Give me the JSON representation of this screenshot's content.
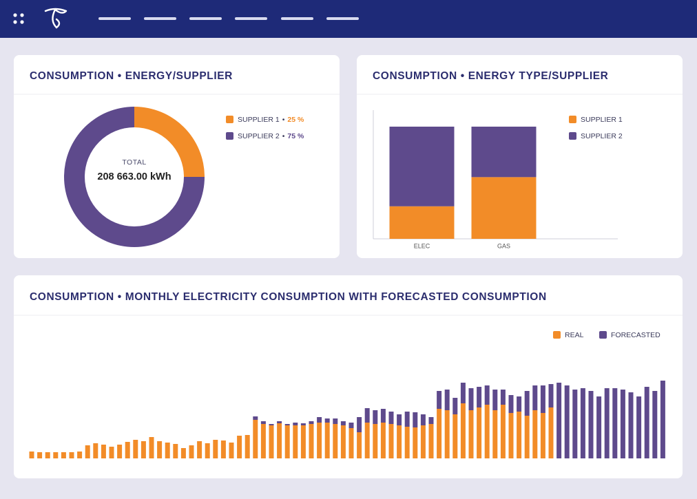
{
  "chart_data": [
    {
      "type": "donut",
      "title": "CONSUMPTION • ENERGY/SUPPLIER",
      "center_label": "TOTAL",
      "center_value": "208 663.00 kWh",
      "legend_separator": "•",
      "categories": [
        "SUPPLIER 1",
        "SUPPLIER 2"
      ],
      "values": [
        25,
        75
      ],
      "value_labels": [
        "25 %",
        "75 %"
      ],
      "colors": [
        "#f28c28",
        "#5e4a8c"
      ]
    },
    {
      "type": "bar",
      "stacked": true,
      "title": "CONSUMPTION • ENERGY TYPE/SUPPLIER",
      "categories": [
        "ELEC",
        "GAS"
      ],
      "ylim": [
        0,
        100
      ],
      "series": [
        {
          "name": "SUPPLIER 1",
          "color": "#f28c28",
          "values": [
            29,
            55
          ]
        },
        {
          "name": "SUPPLIER 2",
          "color": "#5e4a8c",
          "values": [
            71,
            45
          ]
        }
      ]
    },
    {
      "type": "bar",
      "stacked": true,
      "title": "CONSUMPTION • MONTHLY ELECTRICITY CONSUMPTION WITH FORECASTED CONSUMPTION",
      "ylim": [
        0,
        120
      ],
      "series": [
        {
          "name": "REAL",
          "color": "#f28c28",
          "values": [
            10,
            9,
            9,
            9,
            9,
            9,
            10,
            19,
            22,
            20,
            17,
            20,
            24,
            27,
            25,
            31,
            25,
            23,
            21,
            15,
            19,
            25,
            22,
            27,
            26,
            23,
            33,
            34,
            56,
            50,
            48,
            51,
            48,
            48,
            48,
            50,
            52,
            52,
            50,
            48,
            44,
            38,
            52,
            50,
            52,
            50,
            48,
            46,
            45,
            48,
            50,
            72,
            70,
            64,
            80,
            70,
            74,
            78,
            70,
            78,
            66,
            68,
            62,
            70,
            66,
            74,
            null,
            null,
            null,
            null,
            null,
            null,
            null,
            null,
            null,
            null,
            null,
            null,
            null,
            null
          ]
        },
        {
          "name": "FORECASTED",
          "color": "#5e4a8c",
          "values": [
            null,
            null,
            null,
            null,
            null,
            null,
            null,
            null,
            null,
            null,
            null,
            null,
            null,
            null,
            null,
            null,
            null,
            null,
            null,
            null,
            null,
            null,
            null,
            null,
            null,
            null,
            null,
            null,
            5,
            4,
            2,
            3,
            2,
            4,
            3,
            4,
            8,
            6,
            8,
            6,
            8,
            22,
            21,
            20,
            20,
            18,
            16,
            22,
            22,
            16,
            10,
            26,
            30,
            24,
            30,
            32,
            30,
            28,
            30,
            22,
            26,
            22,
            36,
            36,
            40,
            34,
            110,
            106,
            100,
            102,
            98,
            90,
            102,
            102,
            100,
            96,
            90,
            104,
            98,
            113
          ]
        }
      ]
    }
  ]
}
